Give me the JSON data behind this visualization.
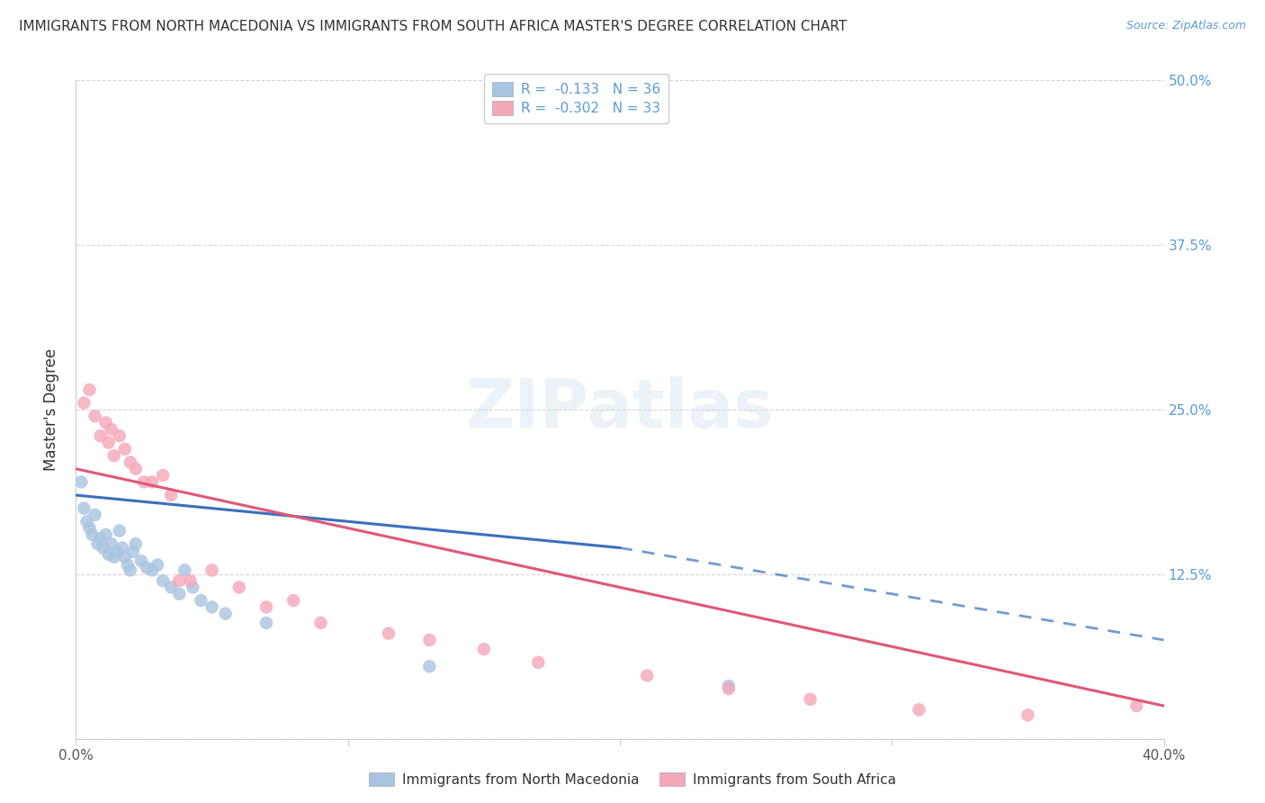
{
  "title": "IMMIGRANTS FROM NORTH MACEDONIA VS IMMIGRANTS FROM SOUTH AFRICA MASTER'S DEGREE CORRELATION CHART",
  "source": "Source: ZipAtlas.com",
  "ylabel": "Master's Degree",
  "xlim": [
    0.0,
    0.4
  ],
  "ylim": [
    0.0,
    0.5
  ],
  "y_ticks": [
    0.0,
    0.125,
    0.25,
    0.375,
    0.5
  ],
  "y_tick_labels_right": [
    "",
    "12.5%",
    "25.0%",
    "37.5%",
    "50.0%"
  ],
  "x_ticks": [
    0.0,
    0.1,
    0.2,
    0.3,
    0.4
  ],
  "legend_entries": [
    {
      "label": "R =  -0.133   N = 36",
      "color": "#a8c4e0"
    },
    {
      "label": "R =  -0.302   N = 33",
      "color": "#f4a7b9"
    }
  ],
  "series_blue": {
    "name": "Immigrants from North Macedonia",
    "color": "#a8c4e0",
    "line_color": "#3b6fbc",
    "x": [
      0.002,
      0.003,
      0.004,
      0.005,
      0.006,
      0.007,
      0.008,
      0.009,
      0.01,
      0.011,
      0.012,
      0.013,
      0.014,
      0.015,
      0.016,
      0.017,
      0.018,
      0.019,
      0.02,
      0.021,
      0.022,
      0.024,
      0.026,
      0.028,
      0.03,
      0.032,
      0.035,
      0.038,
      0.04,
      0.043,
      0.046,
      0.05,
      0.055,
      0.07,
      0.13,
      0.24
    ],
    "y": [
      0.195,
      0.175,
      0.165,
      0.16,
      0.155,
      0.17,
      0.148,
      0.152,
      0.145,
      0.155,
      0.14,
      0.148,
      0.138,
      0.142,
      0.158,
      0.145,
      0.138,
      0.132,
      0.128,
      0.142,
      0.148,
      0.135,
      0.13,
      0.128,
      0.132,
      0.12,
      0.115,
      0.11,
      0.128,
      0.115,
      0.105,
      0.1,
      0.095,
      0.088,
      0.055,
      0.04
    ]
  },
  "series_pink": {
    "name": "Immigrants from South Africa",
    "color": "#f4a7b9",
    "line_color": "#e05878",
    "x": [
      0.003,
      0.005,
      0.007,
      0.009,
      0.011,
      0.012,
      0.013,
      0.014,
      0.016,
      0.018,
      0.02,
      0.022,
      0.025,
      0.028,
      0.032,
      0.035,
      0.038,
      0.042,
      0.05,
      0.06,
      0.07,
      0.08,
      0.09,
      0.115,
      0.13,
      0.15,
      0.17,
      0.21,
      0.24,
      0.27,
      0.31,
      0.35,
      0.39
    ],
    "y": [
      0.255,
      0.265,
      0.245,
      0.23,
      0.24,
      0.225,
      0.235,
      0.215,
      0.23,
      0.22,
      0.21,
      0.205,
      0.195,
      0.195,
      0.2,
      0.185,
      0.12,
      0.12,
      0.128,
      0.115,
      0.1,
      0.105,
      0.088,
      0.08,
      0.075,
      0.068,
      0.058,
      0.048,
      0.038,
      0.03,
      0.022,
      0.018,
      0.025
    ]
  },
  "blue_line": {
    "x_start": 0.0,
    "x_solid_end": 0.2,
    "x_dashed_end": 0.4,
    "y_at_0": 0.185,
    "y_at_solid_end": 0.145,
    "y_at_dashed_end": 0.075
  },
  "pink_line": {
    "x_start": 0.0,
    "x_end": 0.4,
    "y_at_0": 0.205,
    "y_at_end": 0.025
  },
  "background_color": "#ffffff",
  "grid_color": "#cccccc",
  "watermark": "ZIPatlas"
}
